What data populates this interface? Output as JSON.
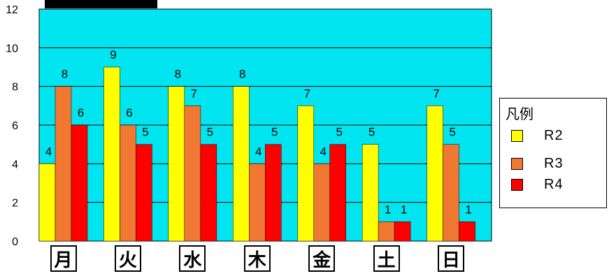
{
  "chart_data": {
    "type": "bar",
    "categories": [
      "月",
      "火",
      "水",
      "木",
      "金",
      "土",
      "日"
    ],
    "series": [
      {
        "name": "R2",
        "color": "#ffff00",
        "values": [
          4,
          9,
          8,
          8,
          7,
          5,
          7
        ]
      },
      {
        "name": "R3",
        "color": "#f07832",
        "values": [
          8,
          6,
          7,
          4,
          4,
          1,
          5
        ]
      },
      {
        "name": "R4",
        "color": "#ff0000",
        "values": [
          6,
          5,
          5,
          5,
          5,
          1,
          1
        ]
      }
    ],
    "yticks": [
      "0",
      "2",
      "4",
      "6",
      "8",
      "10",
      "12"
    ],
    "ylim": [
      0,
      12
    ],
    "grid": true,
    "plot_background": "#00e5ef",
    "legend": {
      "title": "凡例",
      "placement": "right"
    },
    "data_labels": true
  }
}
